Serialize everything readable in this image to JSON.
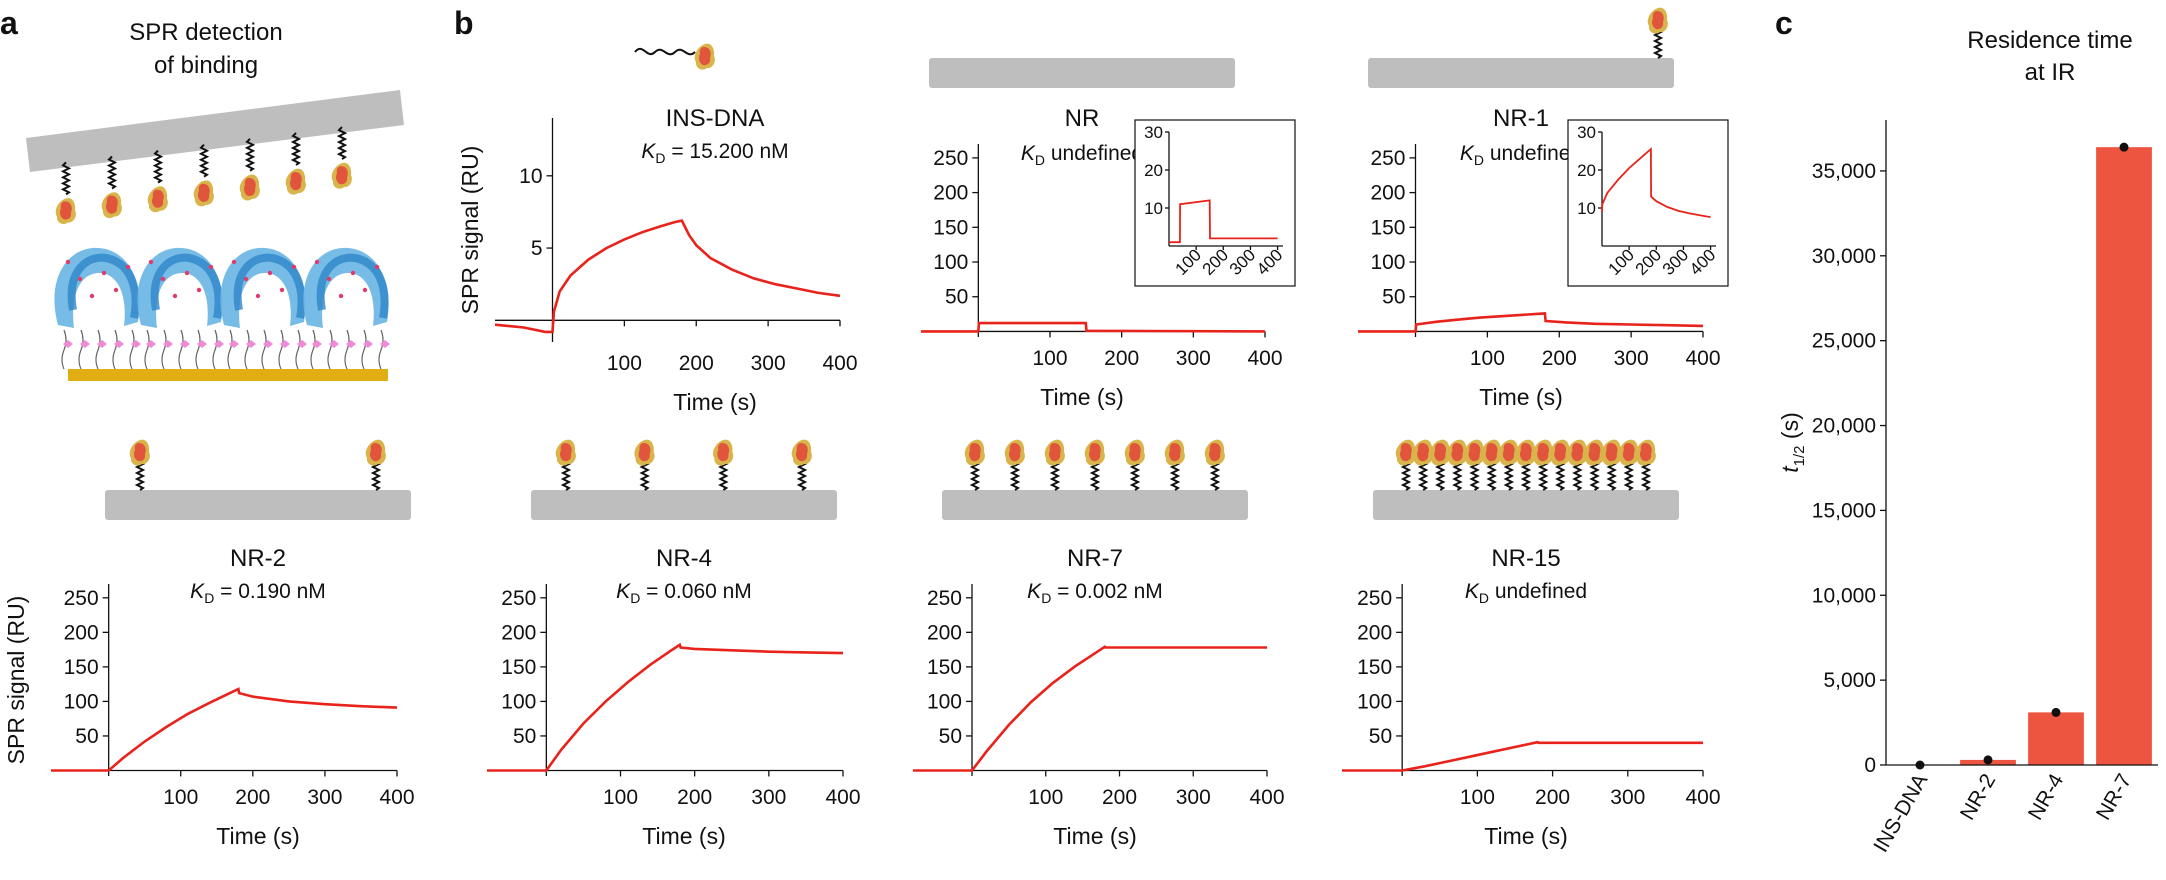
{
  "panel_labels": {
    "a": "a",
    "b": "b",
    "c": "c"
  },
  "schematic": {
    "title_line1": "SPR detection",
    "title_line2": "of binding"
  },
  "colors": {
    "curve": "#e8231b",
    "bar": "#ee5540",
    "chip": "#e0ad12",
    "receptor": "#4aa3df",
    "ligand": "#d9b44a",
    "slab": "#bebebe"
  },
  "chart_data": [
    {
      "id": "ins-dna",
      "type": "line",
      "title": "INS-DNA",
      "kd_sym": "K",
      "kd_sub": "D",
      "kd_text": " = 15.200 nM",
      "xlabel": "Time (s)",
      "ylabel": "SPR signal (RU)",
      "xlim": [
        -80,
        400
      ],
      "ylim": [
        -1.5,
        14
      ],
      "xticks": [
        100,
        200,
        300,
        400
      ],
      "yticks": [
        5,
        10
      ],
      "x": [
        -80,
        -40,
        -10,
        0,
        2,
        10,
        25,
        50,
        75,
        100,
        125,
        150,
        170,
        180,
        182,
        190,
        200,
        220,
        250,
        280,
        310,
        340,
        370,
        400
      ],
      "y": [
        -0.3,
        -0.5,
        -0.8,
        -0.8,
        0.6,
        2.0,
        3.1,
        4.2,
        5.0,
        5.6,
        6.1,
        6.5,
        6.8,
        6.9,
        6.7,
        5.9,
        5.2,
        4.3,
        3.5,
        2.9,
        2.5,
        2.2,
        1.9,
        1.7
      ],
      "inset": null,
      "icon_count": 0,
      "free_ligand": true
    },
    {
      "id": "nr",
      "type": "line",
      "title": "NR",
      "kd_sym": "K",
      "kd_sub": "D",
      "kd_text": " undefined",
      "xlabel": "Time (s)",
      "ylabel": "",
      "xlim": [
        -80,
        400
      ],
      "ylim": [
        -8,
        270
      ],
      "xticks": [
        100,
        200,
        300,
        400
      ],
      "yticks": [
        50,
        100,
        150,
        200,
        250
      ],
      "x": [
        -80,
        0,
        1,
        150,
        151,
        400
      ],
      "y": [
        0,
        0,
        12,
        12,
        1,
        0
      ],
      "inset": {
        "xlim": [
          0,
          420
        ],
        "ylim": [
          0,
          30
        ],
        "xticks": [
          100,
          200,
          300,
          400
        ],
        "yticks": [
          10,
          20,
          30
        ],
        "x": [
          0,
          40,
          41,
          150,
          151,
          400
        ],
        "y": [
          1,
          1,
          11,
          12,
          2,
          2
        ]
      },
      "icon_count": 0,
      "free_ligand": false
    },
    {
      "id": "nr-1",
      "type": "line",
      "title": "NR-1",
      "kd_sym": "K",
      "kd_sub": "D",
      "kd_text": " undefined",
      "xlabel": "Time (s)",
      "ylabel": "",
      "xlim": [
        -80,
        400
      ],
      "ylim": [
        -8,
        270
      ],
      "xticks": [
        100,
        200,
        300,
        400
      ],
      "yticks": [
        50,
        100,
        150,
        200,
        250
      ],
      "x": [
        -80,
        0,
        1,
        30,
        60,
        90,
        120,
        150,
        180,
        181,
        210,
        250,
        300,
        350,
        400
      ],
      "y": [
        0,
        0,
        10,
        14,
        17,
        20,
        22,
        24,
        26,
        15,
        13,
        11,
        10,
        9,
        8
      ],
      "inset": {
        "xlim": [
          0,
          420
        ],
        "ylim": [
          0,
          30
        ],
        "xticks": [
          100,
          200,
          300,
          400
        ],
        "yticks": [
          10,
          20,
          30
        ],
        "x": [
          0,
          1,
          20,
          60,
          100,
          140,
          180,
          181,
          200,
          240,
          280,
          320,
          360,
          400
        ],
        "y": [
          9,
          11,
          14,
          17.5,
          20.5,
          23,
          25.5,
          13,
          11.8,
          10.3,
          9.3,
          8.6,
          8.1,
          7.6
        ]
      },
      "icon_count": 1,
      "free_ligand": false
    },
    {
      "id": "nr-2",
      "type": "line",
      "title": "NR-2",
      "kd_sym": "K",
      "kd_sub": "D",
      "kd_text": " = 0.190 nM",
      "xlabel": "Time (s)",
      "ylabel": "SPR signal (RU)",
      "xlim": [
        -80,
        400
      ],
      "ylim": [
        -8,
        270
      ],
      "xticks": [
        100,
        200,
        300,
        400
      ],
      "yticks": [
        50,
        100,
        150,
        200,
        250
      ],
      "x": [
        -80,
        0,
        20,
        50,
        80,
        110,
        140,
        170,
        180,
        181,
        200,
        250,
        300,
        350,
        400
      ],
      "y": [
        0,
        0,
        18,
        42,
        63,
        82,
        98,
        113,
        118,
        112,
        107,
        100,
        96,
        93,
        91
      ],
      "inset": null,
      "icon_count": 2,
      "free_ligand": false
    },
    {
      "id": "nr-4",
      "type": "line",
      "title": "NR-4",
      "kd_sym": "K",
      "kd_sub": "D",
      "kd_text": " = 0.060 nM",
      "xlabel": "Time (s)",
      "ylabel": "",
      "xlim": [
        -80,
        400
      ],
      "ylim": [
        -8,
        270
      ],
      "xticks": [
        100,
        200,
        300,
        400
      ],
      "yticks": [
        50,
        100,
        150,
        200,
        250
      ],
      "x": [
        -80,
        0,
        20,
        50,
        80,
        110,
        140,
        170,
        180,
        181,
        200,
        250,
        300,
        350,
        400
      ],
      "y": [
        0,
        0,
        30,
        68,
        100,
        128,
        153,
        175,
        182,
        178,
        176,
        174,
        172,
        171,
        170
      ],
      "inset": null,
      "icon_count": 4,
      "free_ligand": false
    },
    {
      "id": "nr-7",
      "type": "line",
      "title": "NR-7",
      "kd_sym": "K",
      "kd_sub": "D",
      "kd_text": " = 0.002 nM",
      "xlabel": "Time (s)",
      "ylabel": "",
      "xlim": [
        -80,
        400
      ],
      "ylim": [
        -8,
        270
      ],
      "xticks": [
        100,
        200,
        300,
        400
      ],
      "yticks": [
        50,
        100,
        150,
        200,
        250
      ],
      "x": [
        -80,
        0,
        20,
        50,
        80,
        110,
        140,
        170,
        180,
        181,
        250,
        300,
        350,
        400
      ],
      "y": [
        0,
        0,
        28,
        66,
        99,
        127,
        151,
        172,
        179,
        178,
        178,
        178,
        178,
        178
      ],
      "inset": null,
      "icon_count": 7,
      "free_ligand": false
    },
    {
      "id": "nr-15",
      "type": "line",
      "title": "NR-15",
      "kd_sym": "K",
      "kd_sub": "D",
      "kd_text": " undefined",
      "xlabel": "Time (s)",
      "ylabel": "",
      "xlim": [
        -80,
        400
      ],
      "ylim": [
        -8,
        270
      ],
      "xticks": [
        100,
        200,
        300,
        400
      ],
      "yticks": [
        50,
        100,
        150,
        200,
        250
      ],
      "x": [
        -80,
        0,
        30,
        60,
        90,
        120,
        150,
        180,
        181,
        250,
        300,
        350,
        400
      ],
      "y": [
        0,
        0,
        6,
        13,
        20,
        27,
        34,
        41,
        40,
        40,
        40,
        40,
        40
      ],
      "inset": null,
      "icon_count": 15,
      "free_ligand": false
    },
    {
      "id": "residence",
      "type": "bar",
      "title_line1": "Residence time",
      "title_line2": "at IR",
      "ylabel_sym": "t",
      "ylabel_sub": "1/2",
      "ylabel_unit": " (s)",
      "categories": [
        "INS-DNA",
        "NR-2",
        "NR-4",
        "NR-7"
      ],
      "values": [
        0,
        300,
        3100,
        36400
      ],
      "ylim": [
        0,
        38000
      ],
      "yticks": [
        0,
        5000,
        10000,
        15000,
        20000,
        25000,
        30000,
        35000
      ],
      "ytick_labels": [
        "0",
        "5,000",
        "10,000",
        "15,000",
        "20,000",
        "25,000",
        "30,000",
        "35,000"
      ]
    }
  ]
}
